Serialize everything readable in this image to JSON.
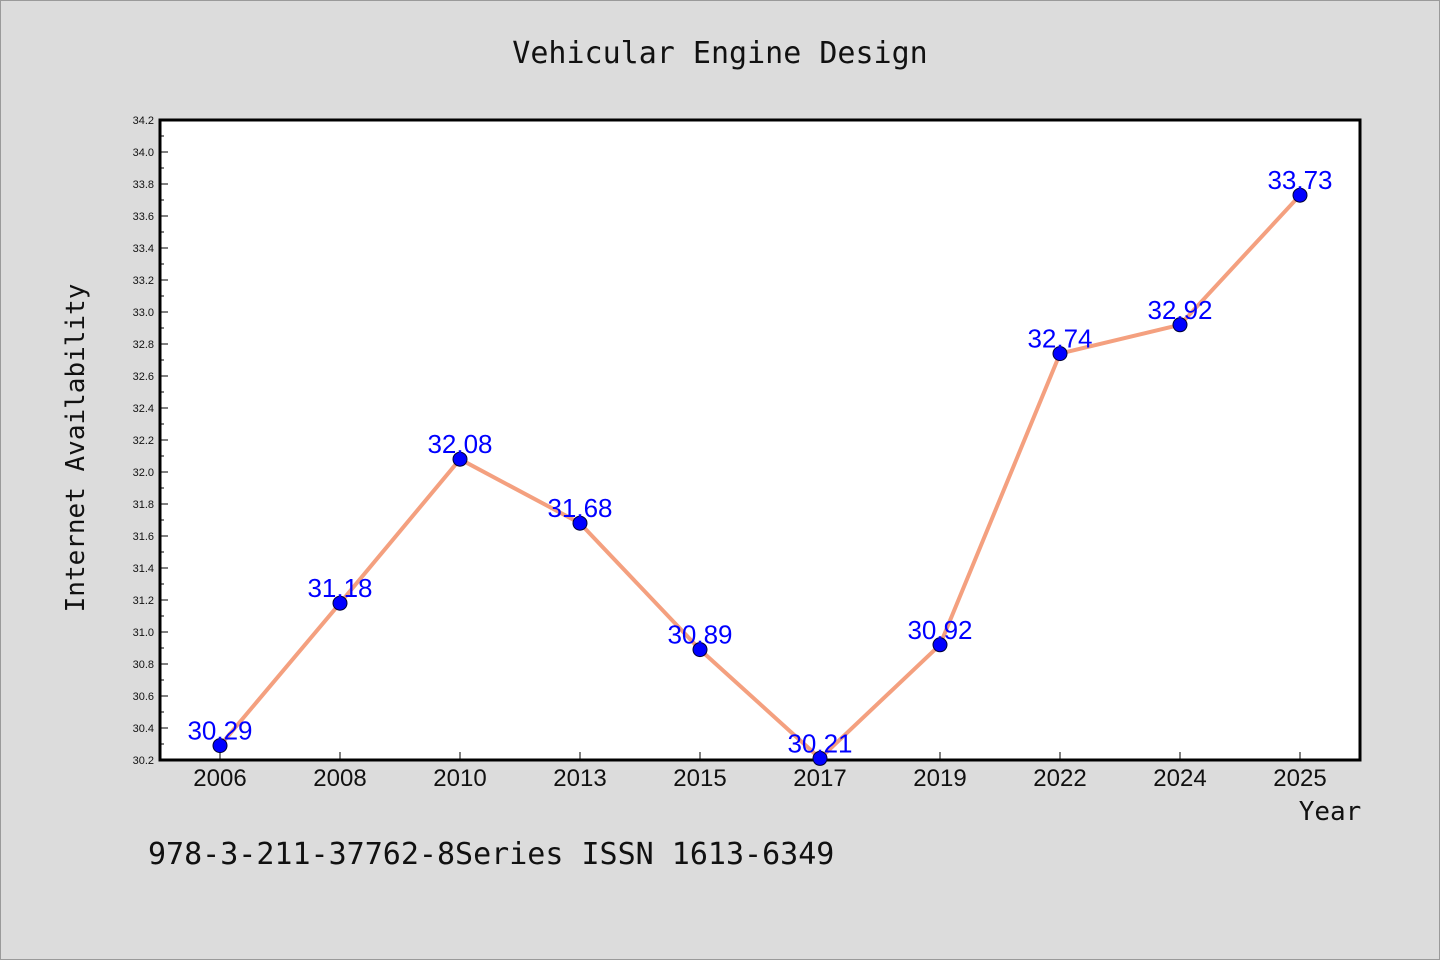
{
  "chart_data": {
    "type": "line",
    "title": "Vehicular Engine Design",
    "xlabel": "Year",
    "ylabel": "Internet Availability",
    "categories": [
      "2006",
      "2008",
      "2010",
      "2013",
      "2015",
      "2017",
      "2019",
      "2022",
      "2024",
      "2025"
    ],
    "series": [
      {
        "values": [
          30.29,
          31.18,
          32.08,
          31.68,
          30.89,
          30.21,
          30.92,
          32.74,
          32.92,
          33.73
        ],
        "data_labels": [
          "30.29",
          "31.18",
          "32.08",
          "31.68",
          "30.89",
          "30.21",
          "30.92",
          "32.74",
          "32.92",
          "33.73"
        ]
      }
    ],
    "ylim": [
      30.2,
      34.2
    ],
    "y_ticks": [
      "30.2",
      "30.4",
      "30.6",
      "30.8",
      "31.0",
      "31.2",
      "31.4",
      "31.6",
      "31.8",
      "32.0",
      "32.2",
      "32.4",
      "32.6",
      "32.8",
      "33.0",
      "33.2",
      "33.4",
      "33.6",
      "33.8",
      "34.0",
      "34.2"
    ],
    "grid": false,
    "legend": "none",
    "colors": {
      "line": "#f4a07f",
      "marker": "#0000ff",
      "data_label": "#0000ff",
      "plot_background": "#ffffff",
      "page_background": "#dcdcdc"
    }
  },
  "footer_text": "978-3-211-37762-8Series ISSN 1613-6349"
}
